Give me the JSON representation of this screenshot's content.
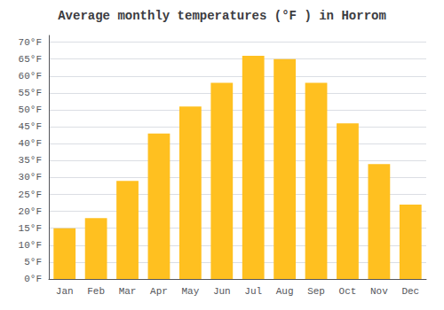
{
  "chart_data": {
    "type": "bar",
    "title": "Average monthly temperatures (°F ) in Horrom",
    "categories": [
      "Jan",
      "Feb",
      "Mar",
      "Apr",
      "May",
      "Jun",
      "Jul",
      "Aug",
      "Sep",
      "Oct",
      "Nov",
      "Dec"
    ],
    "values": [
      15,
      18,
      29,
      43,
      51,
      58,
      66,
      65,
      58,
      46,
      34,
      22
    ],
    "color": "#FFC020",
    "ylim": [
      0,
      72
    ],
    "yticks": [
      {
        "value": 0,
        "label": "0°F"
      },
      {
        "value": 5,
        "label": "5°F"
      },
      {
        "value": 10,
        "label": "10°F"
      },
      {
        "value": 15,
        "label": "15°F"
      },
      {
        "value": 20,
        "label": "20°F"
      },
      {
        "value": 25,
        "label": "25°F"
      },
      {
        "value": 30,
        "label": "30°F"
      },
      {
        "value": 35,
        "label": "35°F"
      },
      {
        "value": 40,
        "label": "40°F"
      },
      {
        "value": 45,
        "label": "45°F"
      },
      {
        "value": 50,
        "label": "50°F"
      },
      {
        "value": 55,
        "label": "55°F"
      },
      {
        "value": 60,
        "label": "60°F"
      },
      {
        "value": 65,
        "label": "65°F"
      },
      {
        "value": 70,
        "label": "70°F"
      }
    ],
    "grid": true
  }
}
